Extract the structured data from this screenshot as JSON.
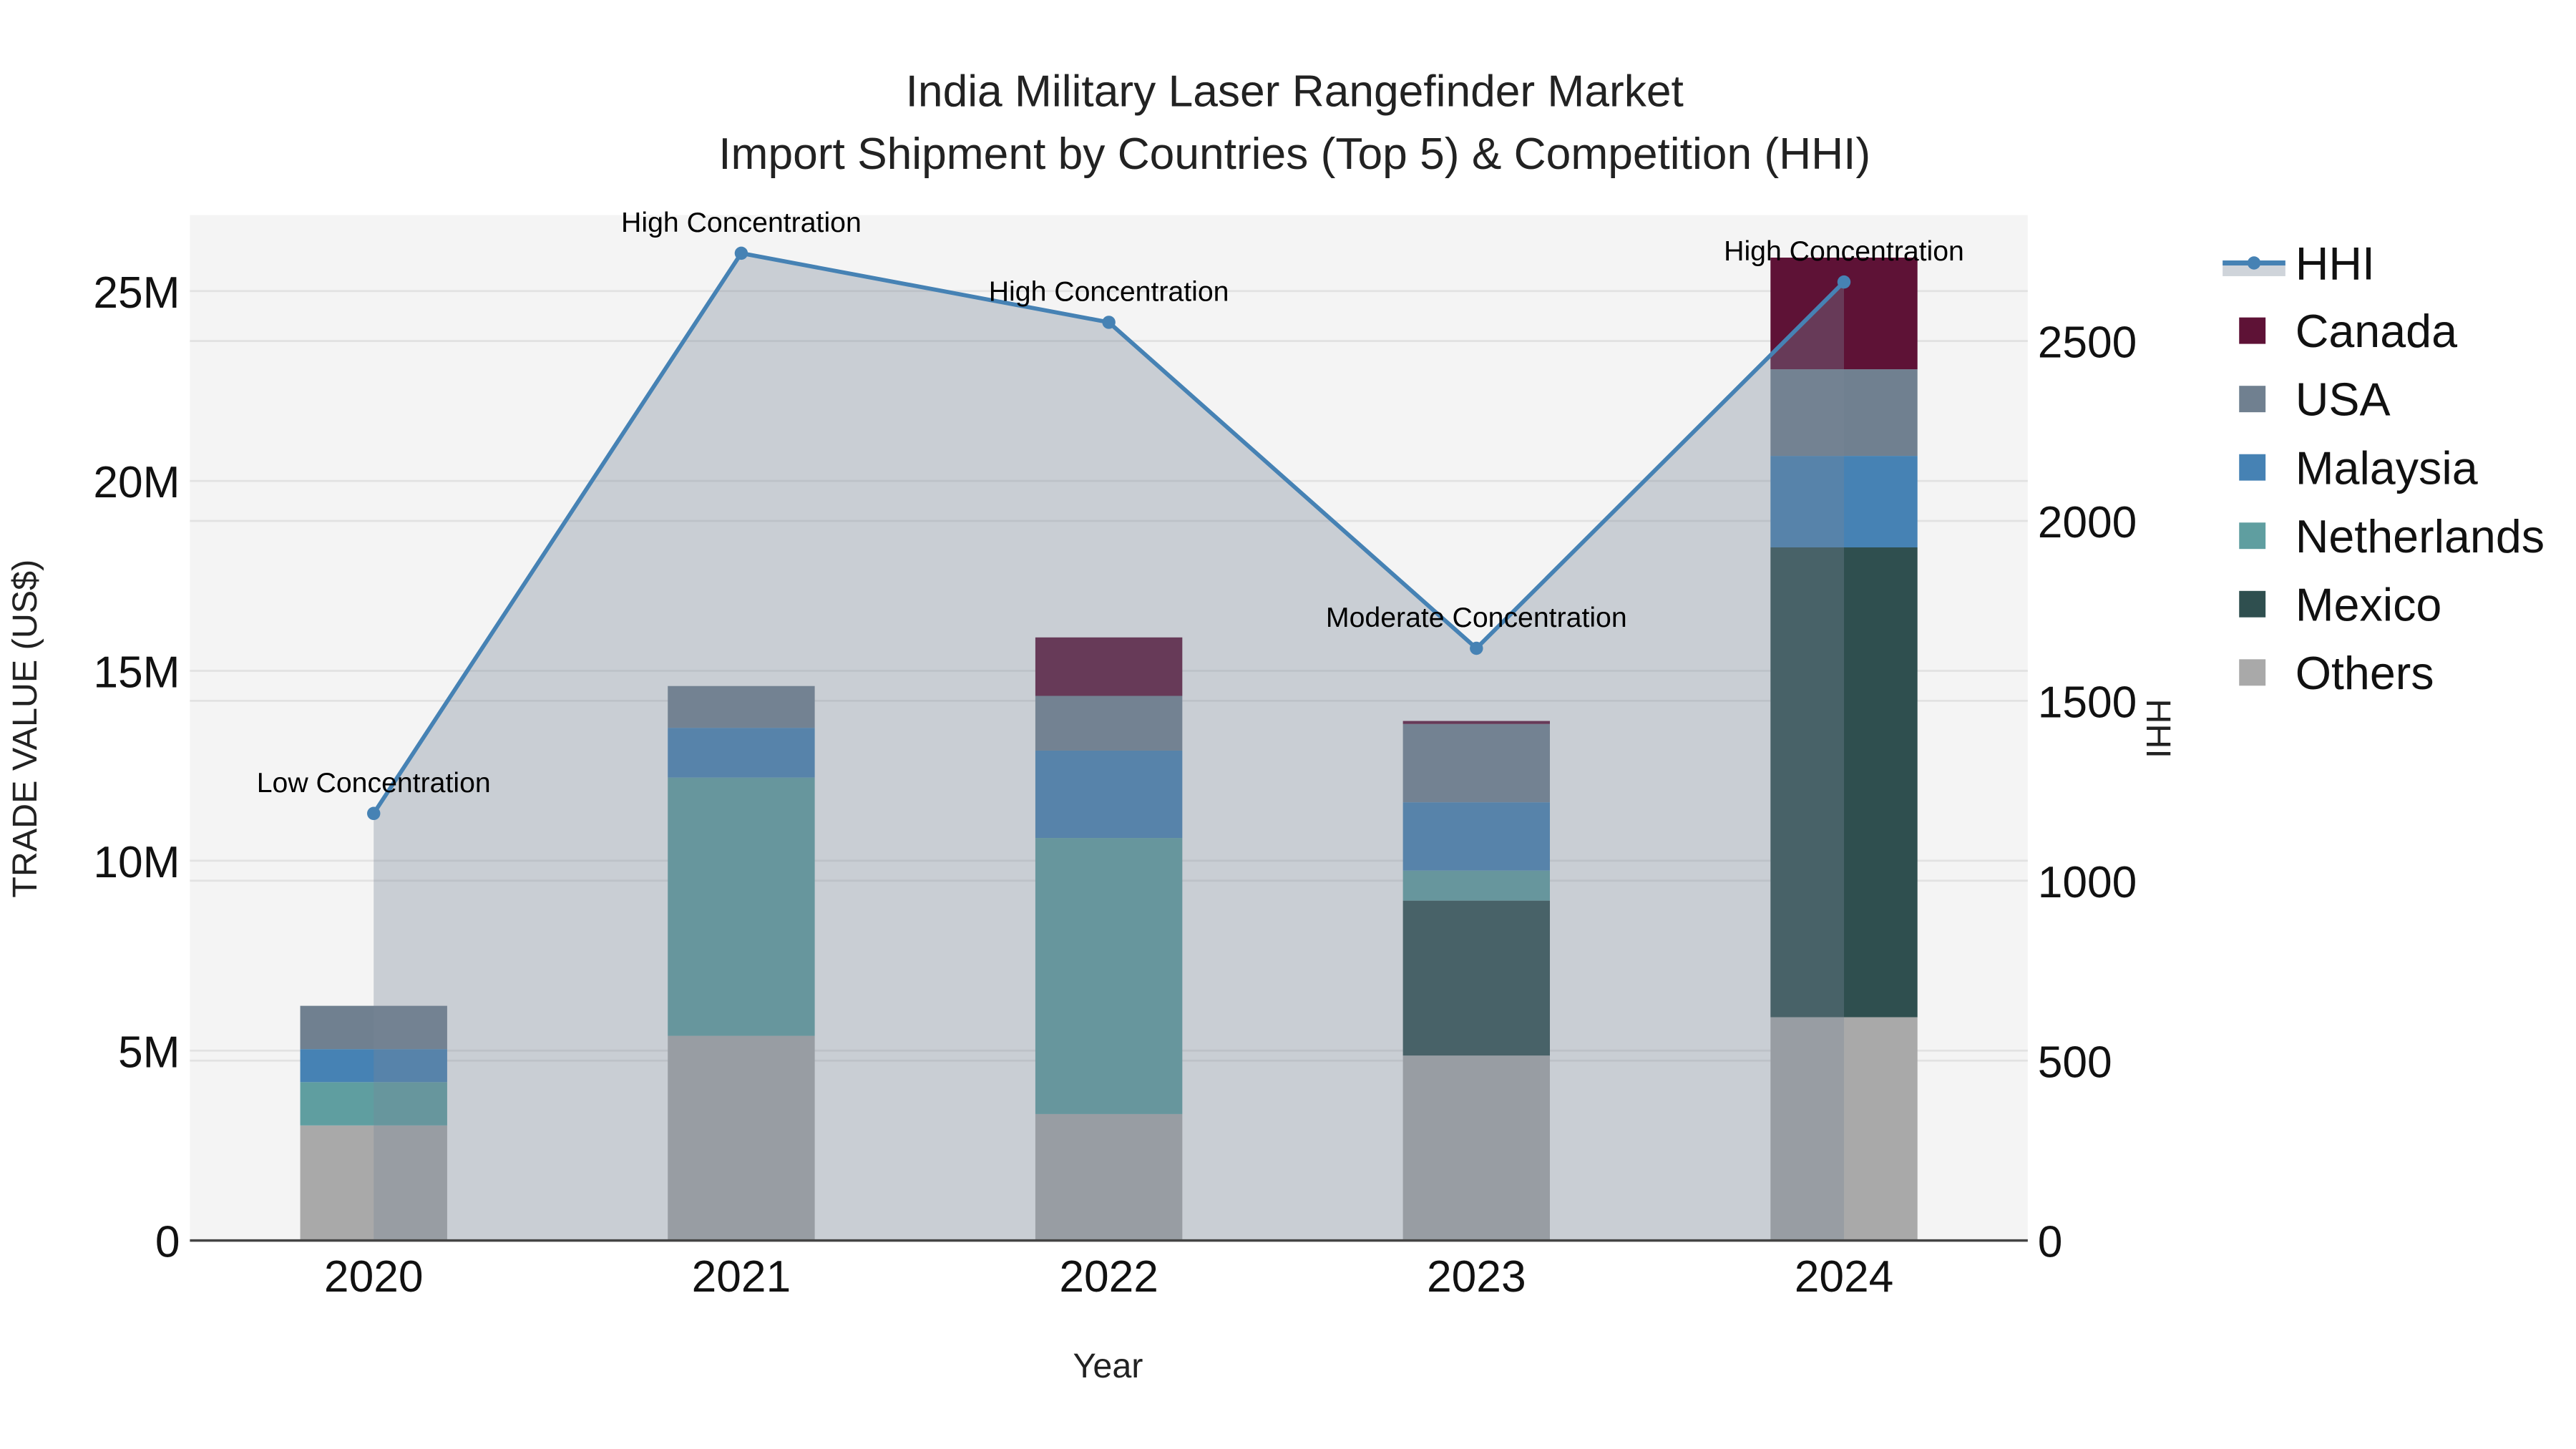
{
  "chart_data": {
    "type": "bar",
    "title_line1": "India Military Laser Rangefinder Market",
    "title_line2": "Import Shipment by Countries (Top 5) & Competition (HHI)",
    "xlabel": "Year",
    "ylabel": "TRADE VALUE (US$)",
    "y2label": "HHI",
    "categories": [
      "2020",
      "2021",
      "2022",
      "2023",
      "2024"
    ],
    "ylim": [
      0,
      27000000
    ],
    "y2lim": [
      0,
      2850
    ],
    "yticks": [
      {
        "v": 0,
        "label": "0"
      },
      {
        "v": 5000000,
        "label": "5M"
      },
      {
        "v": 10000000,
        "label": "10M"
      },
      {
        "v": 15000000,
        "label": "15M"
      },
      {
        "v": 20000000,
        "label": "20M"
      },
      {
        "v": 25000000,
        "label": "25M"
      }
    ],
    "y2ticks": [
      {
        "v": 0,
        "label": "0"
      },
      {
        "v": 500,
        "label": "500"
      },
      {
        "v": 1000,
        "label": "1000"
      },
      {
        "v": 1500,
        "label": "1500"
      },
      {
        "v": 2000,
        "label": "2000"
      },
      {
        "v": 2500,
        "label": "2500"
      }
    ],
    "grid": true,
    "legend_position": "right",
    "stack_order": [
      "Others",
      "Mexico",
      "Netherlands",
      "Malaysia",
      "USA",
      "Canada"
    ],
    "series": [
      {
        "name": "Canada",
        "color": "#5e1236",
        "values": [
          0,
          0,
          1540000,
          80000,
          2940000
        ]
      },
      {
        "name": "USA",
        "color": "#708090",
        "values": [
          1140000,
          1100000,
          1440000,
          2060000,
          2280000
        ]
      },
      {
        "name": "Malaysia",
        "color": "#4682b4",
        "values": [
          870000,
          1310000,
          2300000,
          1800000,
          2410000
        ]
      },
      {
        "name": "Netherlands",
        "color": "#5f9ea0",
        "values": [
          1140000,
          6800000,
          7270000,
          790000,
          0
        ]
      },
      {
        "name": "Mexico",
        "color": "#2f4f4f",
        "values": [
          0,
          0,
          0,
          4080000,
          12370000
        ]
      },
      {
        "name": "Others",
        "color": "#a9a9a9",
        "values": [
          3030000,
          5390000,
          3330000,
          4870000,
          5880000
        ]
      }
    ],
    "hhi": {
      "name": "HHI",
      "color": "#4682b4",
      "fill": "rgba(119,136,153,0.35)",
      "values": [
        1187,
        2744,
        2552,
        1646,
        2664
      ],
      "annotations": [
        "Low Concentration",
        "High Concentration",
        "High Concentration",
        "Moderate Concentration",
        "High Concentration"
      ]
    }
  }
}
